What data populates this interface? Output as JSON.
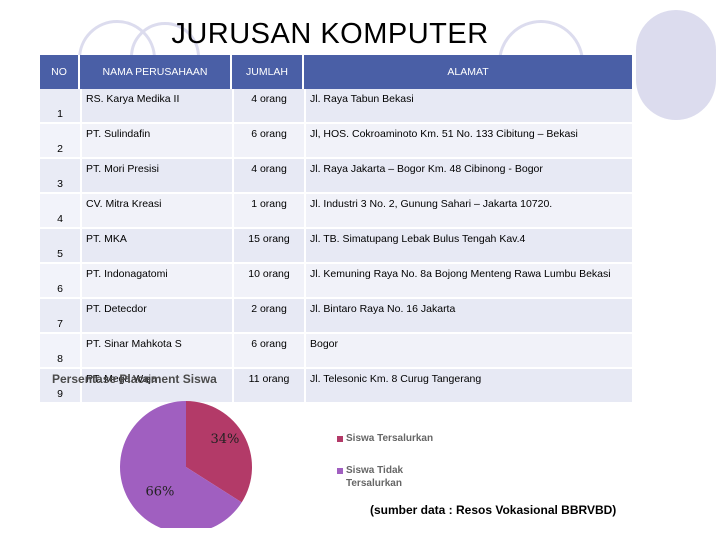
{
  "title": "JURUSAN KOMPUTER",
  "table": {
    "headers": {
      "no": "NO",
      "nama": "NAMA PERUSAHAAN",
      "jumlah": "JUMLAH",
      "alamat": "ALAMAT"
    },
    "rows": [
      {
        "no": "1",
        "nama": "RS. Karya Medika II",
        "jumlah": "4 orang",
        "alamat": "Jl. Raya Tabun Bekasi"
      },
      {
        "no": "2",
        "nama": "PT. Sulindafin",
        "jumlah": "6 orang",
        "alamat": "Jl, HOS. Cokroaminoto Km. 51 No. 133 Cibitung – Bekasi"
      },
      {
        "no": "3",
        "nama": "PT. Mori Presisi",
        "jumlah": "4 orang",
        "alamat": "Jl. Raya Jakarta – Bogor Km. 48 Cibinong - Bogor"
      },
      {
        "no": "4",
        "nama": "CV. Mitra Kreasi",
        "jumlah": "1 orang",
        "alamat": "Jl. Industri 3 No. 2, Gunung Sahari – Jakarta 10720."
      },
      {
        "no": "5",
        "nama": "PT. MKA",
        "jumlah": "15 orang",
        "alamat": "Jl. TB. Simatupang Lebak Bulus Tengah Kav.4"
      },
      {
        "no": "6",
        "nama": "PT. Indonagatomi",
        "jumlah": "10 orang",
        "alamat": "Jl. Kemuning Raya No. 8a Bojong Menteng Rawa Lumbu Bekasi"
      },
      {
        "no": "7",
        "nama": "PT. Detecdor",
        "jumlah": "2 orang",
        "alamat": "Jl. Bintaro Raya No. 16 Jakarta"
      },
      {
        "no": "8",
        "nama": "PT. Sinar Mahkota S",
        "jumlah": "6 orang",
        "alamat": "Bogor"
      },
      {
        "no": "9",
        "nama": "PT. Mega Waja",
        "jumlah": "11 orang",
        "alamat": "Jl. Telesonic Km. 8 Curug Tangerang"
      }
    ]
  },
  "chart_data": {
    "type": "pie",
    "title": "Persentase Placement Siswa",
    "series": [
      {
        "name": "Siswa Tersalurkan",
        "value": 34,
        "label": "34%",
        "color": "#b33a68"
      },
      {
        "name": "Siswa Tidak Tersalurkan",
        "value": 66,
        "label": "66%",
        "color": "#a05fc0"
      }
    ],
    "legend_position": "right",
    "legend_lines": [
      [
        "Siswa Tersalurkan"
      ],
      [
        "Siswa Tidak",
        "Tersalurkan"
      ]
    ]
  },
  "source": "(sumber data : Resos Vokasional BBRVBD)",
  "colors": {
    "header": "#4a5fa6",
    "row": "#e7e9f4",
    "row_alt": "#f1f2f9",
    "deco": "#dcdcee"
  }
}
